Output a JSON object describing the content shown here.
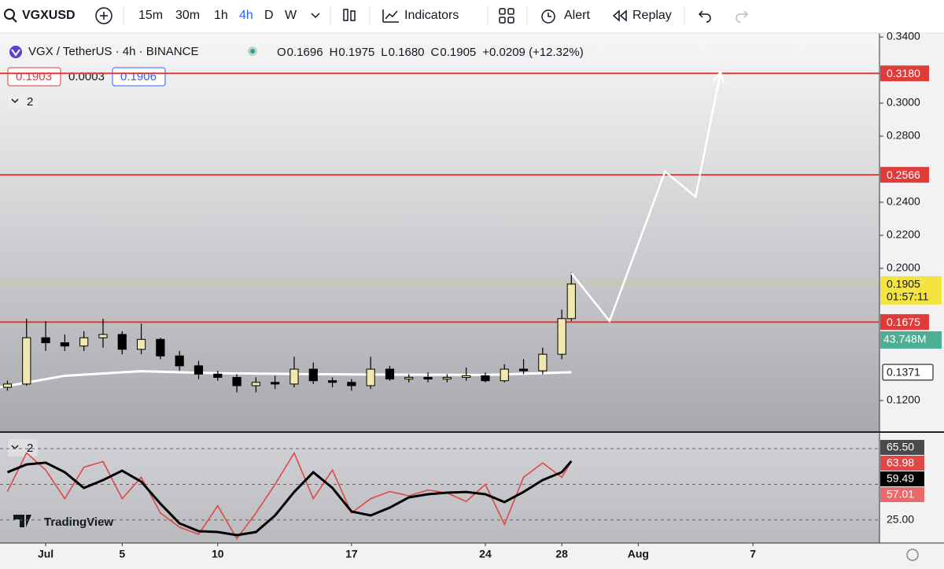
{
  "toolbar": {
    "symbol": "VGXUSD",
    "intervals": [
      "15m",
      "30m",
      "1h",
      "4h",
      "D",
      "W"
    ],
    "active_interval": 3,
    "indicators": "Indicators",
    "alert": "Alert",
    "replay": "Replay"
  },
  "header": {
    "title": "VGX / TetherUS · 4h · BINANCE",
    "ohlc": [
      {
        "label": "O",
        "value": "0.1696"
      },
      {
        "label": "H",
        "value": "0.1975"
      },
      {
        "label": "L",
        "value": "0.1680"
      },
      {
        "label": "C",
        "value": "0.1905"
      }
    ],
    "change": "+0.0209 (+12.32%)",
    "bid": "0.1903",
    "spread": "0.0003",
    "ask": "0.1906",
    "main_indicator_count": "2",
    "rsi_indicator_count": "2",
    "watermark": "TradingView"
  },
  "chart_data": [
    {
      "type": "candlestick",
      "x": [
        -1,
        0,
        1,
        2,
        3,
        4,
        5,
        6,
        7,
        8,
        9,
        10,
        11,
        12,
        13,
        14,
        15,
        16,
        17,
        18,
        19,
        20,
        21,
        22,
        23,
        24,
        25,
        26,
        27,
        28,
        28.5
      ],
      "open": [
        0.128,
        0.13,
        0.158,
        0.155,
        0.153,
        0.158,
        0.16,
        0.151,
        0.157,
        0.147,
        0.141,
        0.136,
        0.134,
        0.129,
        0.131,
        0.13,
        0.139,
        0.132,
        0.131,
        0.129,
        0.139,
        0.133,
        0.134,
        0.133,
        0.134,
        0.135,
        0.132,
        0.139,
        0.138,
        0.148,
        0.1696
      ],
      "high": [
        0.132,
        0.1695,
        0.168,
        0.16,
        0.162,
        0.1695,
        0.162,
        0.1665,
        0.158,
        0.15,
        0.144,
        0.138,
        0.136,
        0.134,
        0.135,
        0.1465,
        0.143,
        0.134,
        0.133,
        0.1465,
        0.141,
        0.136,
        0.137,
        0.136,
        0.14,
        0.137,
        0.142,
        0.145,
        0.152,
        0.175,
        0.1975
      ],
      "low": [
        0.126,
        0.129,
        0.15,
        0.15,
        0.15,
        0.152,
        0.148,
        0.148,
        0.145,
        0.138,
        0.133,
        0.132,
        0.125,
        0.125,
        0.127,
        0.128,
        0.13,
        0.128,
        0.126,
        0.127,
        0.132,
        0.131,
        0.131,
        0.131,
        0.132,
        0.131,
        0.131,
        0.136,
        0.136,
        0.145,
        0.168
      ],
      "close": [
        0.13,
        0.158,
        0.155,
        0.153,
        0.158,
        0.16,
        0.151,
        0.157,
        0.147,
        0.141,
        0.136,
        0.134,
        0.129,
        0.131,
        0.13,
        0.139,
        0.132,
        0.131,
        0.129,
        0.139,
        0.133,
        0.134,
        0.133,
        0.134,
        0.135,
        0.132,
        0.139,
        0.138,
        0.148,
        0.1696,
        0.1905
      ],
      "up_color": "#f3e7b0",
      "down_color": "#000000",
      "xlim": [
        -1.39,
        44.62
      ],
      "xticks": [
        {
          "value": 1,
          "label": "Jul"
        },
        5,
        10,
        17,
        24,
        28,
        {
          "value": 32,
          "label": "Aug"
        },
        {
          "value": 38,
          "label": "7"
        }
      ],
      "ylim": [
        0.1014,
        0.3424
      ],
      "yticks": [
        {
          "value": 0.34,
          "label": "0.3400"
        },
        {
          "value": 0.3,
          "label": "0.3000"
        },
        {
          "value": 0.28,
          "label": "0.2800"
        },
        {
          "value": 0.24,
          "label": "0.2400"
        },
        {
          "value": 0.22,
          "label": "0.2200"
        },
        {
          "value": 0.2,
          "label": "0.2000"
        },
        {
          "value": 0.12,
          "label": "0.1200"
        }
      ],
      "levels": [
        {
          "value": 0.318,
          "label": "0.3180"
        },
        {
          "value": 0.2566,
          "label": "0.2566"
        },
        {
          "value": 0.1675,
          "label": "0.1675"
        }
      ],
      "level_color": "#e03b3b",
      "last_price": {
        "value": 0.1905,
        "label": "0.1905",
        "countdown": "01:57:11",
        "color": "#f5e33f"
      },
      "volume_label": "43.748M",
      "moving_average": {
        "color": "#ffffff",
        "x": [
          -1.39,
          2,
          6,
          10,
          17,
          24,
          28.5
        ],
        "values": [
          0.128,
          0.135,
          0.1378,
          0.1365,
          0.1358,
          0.1355,
          0.1371
        ],
        "label": "0.1371"
      },
      "projection": {
        "color": "#ffffff",
        "x": [
          28.5,
          30.5,
          33.4,
          35.0,
          36.3
        ],
        "values": [
          0.1971,
          0.1681,
          0.2586,
          0.2433,
          0.3186
        ]
      }
    },
    {
      "type": "line",
      "x": [
        -1,
        0,
        1,
        2,
        3,
        4,
        5,
        6,
        7,
        8,
        9,
        10,
        11,
        12,
        13,
        14,
        15,
        16,
        17,
        18,
        19,
        20,
        21,
        22,
        23,
        24,
        25,
        26,
        27,
        28,
        28.5
      ],
      "series": [
        {
          "color": "#e04848",
          "width": 1.6,
          "values": [
            45,
            72,
            60,
            40,
            62,
            66,
            40,
            55,
            30,
            20,
            15,
            35,
            12,
            30,
            50,
            72,
            40,
            60,
            30,
            40,
            45,
            42,
            46,
            44,
            38,
            50,
            22,
            55,
            65,
            55,
            66
          ]
        },
        {
          "color": "#000000",
          "width": 3,
          "values": [
            58.5,
            64,
            65.2,
            58.5,
            47.5,
            53,
            59.6,
            51.9,
            36.5,
            22.7,
            17.2,
            16.6,
            14.4,
            16.6,
            28.2,
            44.7,
            58.5,
            47.5,
            31,
            28.2,
            33.7,
            40.9,
            43.1,
            44.2,
            44.7,
            43.1,
            37.6,
            44.7,
            53,
            58.5,
            66.3
          ]
        }
      ],
      "ylim": [
        10,
        85
      ],
      "yticks": [
        {
          "value": 25,
          "label": "25.00"
        }
      ],
      "hlines": [
        75,
        50
      ],
      "last_values": [
        {
          "value": 65.5,
          "label": "65.50",
          "bg": "#4a4a4a",
          "fg": "#ffffff"
        },
        {
          "value": 63.98,
          "label": "63.98",
          "bg": "#e04848",
          "fg": "#ffffff"
        },
        {
          "value": 59.49,
          "label": "59.49",
          "bg": "#000000",
          "fg": "#ffffff"
        },
        {
          "value": 57.01,
          "label": "57.01",
          "bg": "#e86a6a",
          "fg": "#ffffff"
        }
      ]
    }
  ]
}
